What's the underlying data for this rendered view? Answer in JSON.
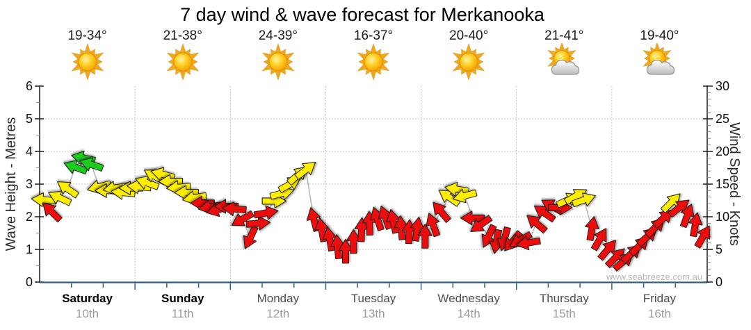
{
  "title": "7 day wind & wave forecast for Merkanooka",
  "watermark": "www.seabreeze.com.au",
  "left_axis": {
    "label": "Wave Height - Metres",
    "ticks": [
      "0",
      "1",
      "2",
      "3",
      "4",
      "5",
      "6"
    ]
  },
  "right_axis": {
    "label": "Wind Speed - Knots",
    "ticks": [
      "0",
      "5",
      "10",
      "15",
      "20",
      "25",
      "30"
    ]
  },
  "days": [
    {
      "name": "Saturday",
      "date": "10th",
      "temp": "19-34°",
      "icon": "sunny",
      "emphasis": true
    },
    {
      "name": "Sunday",
      "date": "11th",
      "temp": "21-38°",
      "icon": "sunny",
      "emphasis": true
    },
    {
      "name": "Monday",
      "date": "12th",
      "temp": "24-39°",
      "icon": "sunny",
      "emphasis": false
    },
    {
      "name": "Tuesday",
      "date": "13th",
      "temp": "16-37°",
      "icon": "sunny",
      "emphasis": false
    },
    {
      "name": "Wednesday",
      "date": "14th",
      "temp": "20-40°",
      "icon": "sunny",
      "emphasis": false
    },
    {
      "name": "Thursday",
      "date": "15th",
      "temp": "21-41°",
      "icon": "partly-cloudy",
      "emphasis": false
    },
    {
      "name": "Friday",
      "date": "16th",
      "temp": "19-40°",
      "icon": "partly-cloudy",
      "emphasis": false
    }
  ],
  "chart_data": {
    "type": "wind-arrow-line",
    "title": "7 day wind & wave forecast for Merkanooka",
    "x_categories": [
      "Saturday 10th",
      "Sunday 11th",
      "Monday 12th",
      "Tuesday 13th",
      "Wednesday 14th",
      "Thursday 15th",
      "Friday 16th"
    ],
    "samples_per_day": 12,
    "y_left": {
      "label": "Wave Height - Metres",
      "range": [
        0,
        6
      ],
      "gridlines": [
        1,
        2,
        3,
        4,
        5
      ]
    },
    "y_right": {
      "label": "Wind Speed - Knots",
      "range": [
        0,
        30
      ],
      "gridlines": [
        5,
        10,
        15,
        20,
        25
      ]
    },
    "arrow_colors": {
      "r": "#ee1111",
      "y": "#ffee00",
      "g": "#1ecc1e"
    },
    "color_meaning": {
      "r": "light wind",
      "y": "moderate wind",
      "g": "fresh wind"
    },
    "arrow_note": "each arrow = [wind speed in knots, direction arrow points in degrees clockwise from screen-right, color key]; 12 samples per day",
    "arrows": [
      [
        12.6,
        185,
        "y"
      ],
      [
        10.8,
        225,
        "r"
      ],
      [
        12.9,
        205,
        "y"
      ],
      [
        14.3,
        215,
        "y"
      ],
      [
        17.6,
        200,
        "g"
      ],
      [
        19.0,
        192,
        "g"
      ],
      [
        18.0,
        198,
        "g"
      ],
      [
        14.6,
        165,
        "y"
      ],
      [
        14.0,
        180,
        "y"
      ],
      [
        14.4,
        170,
        "y"
      ],
      [
        13.7,
        185,
        "y"
      ],
      [
        14.4,
        180,
        "y"
      ],
      [
        14.6,
        185,
        "y"
      ],
      [
        15.2,
        200,
        "y"
      ],
      [
        16.2,
        210,
        "y"
      ],
      [
        16.5,
        195,
        "y"
      ],
      [
        15.4,
        180,
        "y"
      ],
      [
        14.5,
        175,
        "y"
      ],
      [
        13.7,
        180,
        "y"
      ],
      [
        12.9,
        170,
        "y"
      ],
      [
        12.1,
        180,
        "r"
      ],
      [
        11.5,
        170,
        "r"
      ],
      [
        11.1,
        165,
        "r"
      ],
      [
        11.6,
        180,
        "r"
      ],
      [
        11.2,
        185,
        "r"
      ],
      [
        9.6,
        150,
        "r"
      ],
      [
        6.8,
        115,
        "r"
      ],
      [
        9.0,
        355,
        "r"
      ],
      [
        10.6,
        350,
        "r"
      ],
      [
        12.4,
        0,
        "y"
      ],
      [
        13.6,
        345,
        "y"
      ],
      [
        15.0,
        330,
        "y"
      ],
      [
        16.4,
        318,
        "y"
      ],
      [
        17.2,
        322,
        "y"
      ],
      [
        9.6,
        255,
        "r"
      ],
      [
        8.0,
        260,
        "r"
      ],
      [
        6.6,
        260,
        "r"
      ],
      [
        5.4,
        265,
        "r"
      ],
      [
        4.7,
        270,
        "r"
      ],
      [
        6.2,
        270,
        "r"
      ],
      [
        8.0,
        272,
        "r"
      ],
      [
        9.0,
        268,
        "r"
      ],
      [
        9.7,
        252,
        "r"
      ],
      [
        9.9,
        250,
        "r"
      ],
      [
        9.3,
        258,
        "r"
      ],
      [
        8.3,
        265,
        "r"
      ],
      [
        7.7,
        272,
        "r"
      ],
      [
        8.1,
        278,
        "r"
      ],
      [
        7.0,
        270,
        "r"
      ],
      [
        8.8,
        250,
        "r"
      ],
      [
        10.8,
        230,
        "r"
      ],
      [
        13.0,
        215,
        "y"
      ],
      [
        14.2,
        190,
        "y"
      ],
      [
        13.2,
        165,
        "y"
      ],
      [
        9.8,
        180,
        "r"
      ],
      [
        8.8,
        145,
        "r"
      ],
      [
        7.0,
        115,
        "r"
      ],
      [
        6.2,
        100,
        "r"
      ],
      [
        6.6,
        105,
        "r"
      ],
      [
        6.2,
        130,
        "r"
      ],
      [
        6.4,
        150,
        "r"
      ],
      [
        6.0,
        170,
        "r"
      ],
      [
        9.0,
        220,
        "r"
      ],
      [
        10.6,
        215,
        "r"
      ],
      [
        11.6,
        210,
        "r"
      ],
      [
        11.4,
        0,
        "r"
      ],
      [
        12.6,
        335,
        "y"
      ],
      [
        13.2,
        330,
        "y"
      ],
      [
        12.6,
        340,
        "y"
      ],
      [
        8.2,
        280,
        "r"
      ],
      [
        6.6,
        300,
        "r"
      ],
      [
        5.0,
        310,
        "r"
      ],
      [
        3.8,
        315,
        "r"
      ],
      [
        3.2,
        320,
        "r"
      ],
      [
        4.4,
        318,
        "r"
      ],
      [
        5.6,
        315,
        "r"
      ],
      [
        7.0,
        318,
        "r"
      ],
      [
        8.4,
        315,
        "r"
      ],
      [
        9.8,
        318,
        "r"
      ],
      [
        12.2,
        315,
        "y"
      ],
      [
        11.4,
        322,
        "r"
      ],
      [
        10.2,
        290,
        "r"
      ],
      [
        8.8,
        280,
        "r"
      ],
      [
        7.0,
        300,
        "r"
      ]
    ]
  },
  "style": {
    "x_axis_color": "#2d5e84",
    "axis_color": "#1a1a1a",
    "grid_color": "#b0b0b0",
    "connector_color": "#b3b3b3",
    "weekday_emphasis_color": "#000000",
    "weekday_color": "#4d4d4d",
    "date_color": "#9a9a9a"
  }
}
